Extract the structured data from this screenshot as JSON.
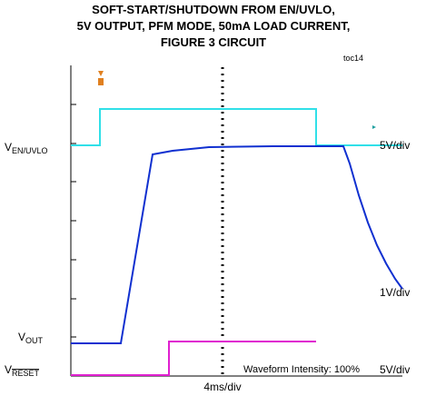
{
  "title_lines": [
    "SOFT-START/SHUTDOWN FROM EN/UVLO,",
    "5V OUTPUT, PFM MODE, 50mA  LOAD CURRENT,",
    "FIGURE 3 CIRCUIT"
  ],
  "figure_id": "toc14",
  "labels": {
    "en_uvlo": {
      "main": "V",
      "sub": "EN/UVLO",
      "scale": "5V/div"
    },
    "out": {
      "main": "V",
      "sub": "OUT",
      "scale": "1V/div"
    },
    "reset": {
      "main": "V",
      "sub": "RESET",
      "scale": "5V/div"
    }
  },
  "intensity": "Waveform Intensity: 100%",
  "time_scale": "4ms/div"
}
